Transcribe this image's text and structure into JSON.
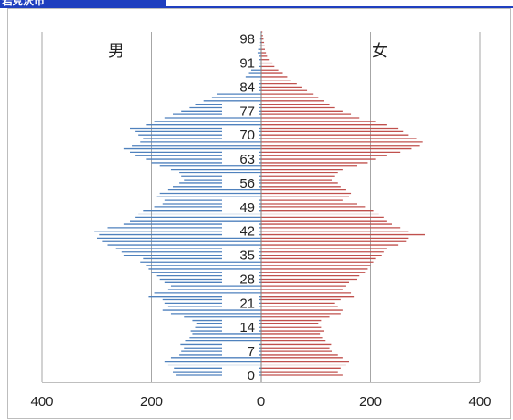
{
  "header": {
    "title": "岩見沢市"
  },
  "chart_data": {
    "type": "bar",
    "orientation": "horizontal",
    "subtype": "population-pyramid",
    "title": "",
    "xlabel": "",
    "ylabel": "",
    "xlim": [
      -400,
      400
    ],
    "x_tick_labels": [
      "400",
      "200",
      "0",
      "200",
      "400"
    ],
    "x_tick_values": [
      -400,
      -200,
      0,
      200,
      400
    ],
    "y_tick_labels": [
      "0",
      "7",
      "14",
      "21",
      "28",
      "35",
      "42",
      "49",
      "56",
      "63",
      "70",
      "77",
      "84",
      "91",
      "98"
    ],
    "age_min": 0,
    "age_max": 100,
    "series": [
      {
        "name": "男",
        "color": "#4f81bd",
        "side": "left",
        "values": [
          155,
          160,
          158,
          170,
          175,
          165,
          150,
          145,
          140,
          148,
          138,
          130,
          125,
          128,
          120,
          118,
          125,
          140,
          165,
          180,
          170,
          175,
          180,
          205,
          195,
          170,
          165,
          175,
          185,
          190,
          200,
          205,
          210,
          220,
          215,
          250,
          255,
          265,
          280,
          290,
          300,
          295,
          305,
          280,
          250,
          240,
          230,
          225,
          215,
          195,
          180,
          175,
          190,
          185,
          170,
          160,
          150,
          140,
          145,
          150,
          165,
          185,
          200,
          210,
          230,
          240,
          250,
          235,
          220,
          215,
          225,
          230,
          240,
          210,
          195,
          175,
          160,
          145,
          130,
          120,
          105,
          90,
          80,
          65,
          55,
          45,
          35,
          28,
          22,
          18,
          14,
          11,
          8,
          6,
          5,
          4,
          3,
          2,
          2,
          1,
          1
        ]
      },
      {
        "name": "女",
        "color": "#c0504d",
        "side": "right",
        "values": [
          150,
          140,
          145,
          155,
          160,
          150,
          140,
          130,
          125,
          128,
          118,
          112,
          108,
          115,
          110,
          105,
          110,
          125,
          145,
          150,
          140,
          135,
          145,
          170,
          165,
          150,
          155,
          160,
          175,
          180,
          190,
          195,
          200,
          205,
          210,
          220,
          225,
          230,
          250,
          265,
          270,
          300,
          270,
          255,
          240,
          230,
          225,
          215,
          205,
          190,
          175,
          150,
          160,
          165,
          155,
          145,
          140,
          130,
          135,
          140,
          150,
          175,
          195,
          210,
          230,
          255,
          275,
          290,
          295,
          285,
          270,
          260,
          250,
          230,
          210,
          180,
          165,
          150,
          135,
          125,
          115,
          105,
          95,
          85,
          75,
          65,
          55,
          48,
          40,
          32,
          25,
          20,
          15,
          12,
          10,
          8,
          6,
          5,
          4,
          3,
          2
        ]
      }
    ],
    "annotations": [
      "男",
      "女"
    ],
    "grid": {
      "vertical": true,
      "horizontal": false
    },
    "legend": "none"
  }
}
